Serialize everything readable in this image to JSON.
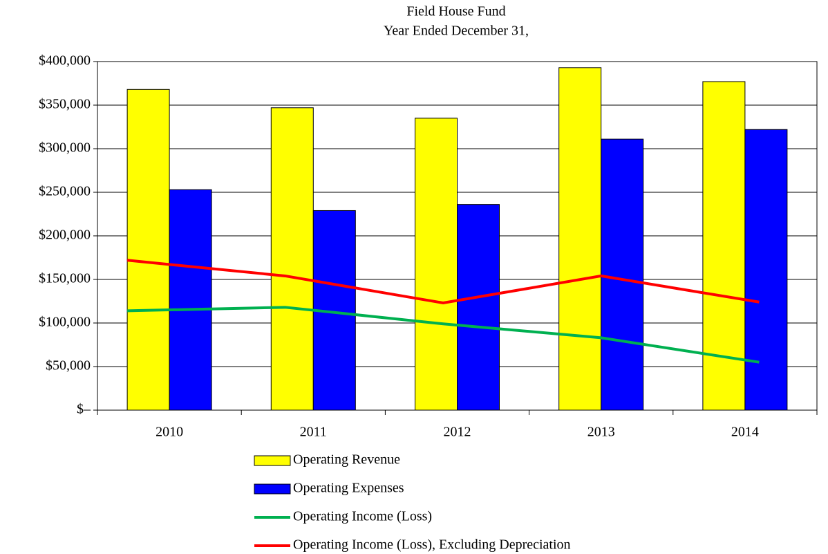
{
  "chart_data": {
    "type": "bar",
    "title": "Field House Fund",
    "subtitle": "Year Ended December 31,",
    "categories": [
      "2010",
      "2011",
      "2012",
      "2013",
      "2014"
    ],
    "series": [
      {
        "name": "Operating Revenue",
        "type": "bar",
        "color": "#ffff00",
        "values": [
          368000,
          347000,
          335000,
          393000,
          377000
        ]
      },
      {
        "name": "Operating Expenses",
        "type": "bar",
        "color": "#0000ff",
        "values": [
          253000,
          229000,
          236000,
          311000,
          322000
        ]
      },
      {
        "name": "Operating Income (Loss)",
        "type": "line",
        "color": "#00b050",
        "values": [
          114000,
          118000,
          99000,
          83000,
          55000
        ]
      },
      {
        "name": "Operating Income (Loss), Excluding Depreciation",
        "type": "line",
        "color": "#ff0000",
        "values": [
          172000,
          154000,
          123000,
          154000,
          124000
        ]
      }
    ],
    "ylim": [
      0,
      400000
    ],
    "yticks": [
      {
        "value": 0,
        "label": "$–"
      },
      {
        "value": 50000,
        "label": "$50,000"
      },
      {
        "value": 100000,
        "label": "$100,000"
      },
      {
        "value": 150000,
        "label": "$150,000"
      },
      {
        "value": 200000,
        "label": "$200,000"
      },
      {
        "value": 250000,
        "label": "$250,000"
      },
      {
        "value": 300000,
        "label": "$300,000"
      },
      {
        "value": 350000,
        "label": "$350,000"
      },
      {
        "value": 400000,
        "label": "$400,000"
      }
    ],
    "legend": "bottom"
  }
}
